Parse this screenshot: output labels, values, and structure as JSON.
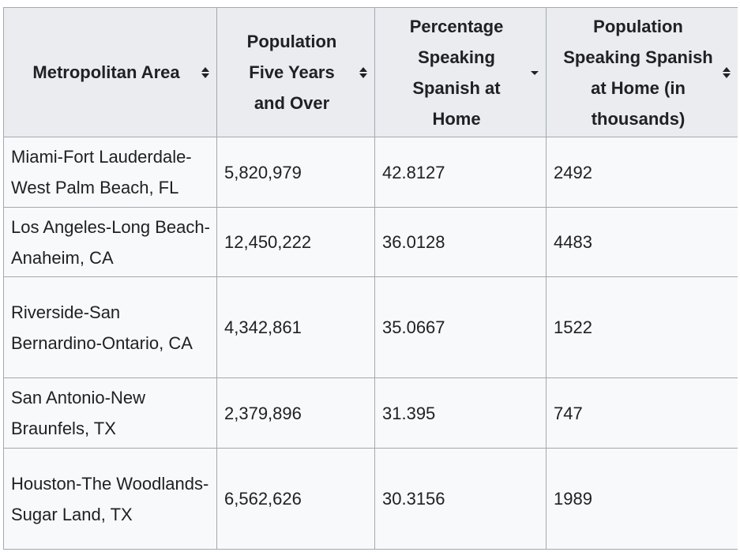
{
  "table": {
    "headers": [
      {
        "label": "Metropolitan Area",
        "sort": "both"
      },
      {
        "label": "Population Five Years and Over",
        "sort": "both"
      },
      {
        "label": "Percentage Speaking Spanish at Home",
        "sort": "descending"
      },
      {
        "label": "Population Speaking Spanish at Home (in thousands)",
        "sort": "both"
      }
    ],
    "rows": [
      {
        "metro": "Miami-Fort Lauderdale-West Palm Beach, FL",
        "population": "5,820,979",
        "percentage": "42.8127",
        "spanish_thousands": "2492"
      },
      {
        "metro": "Los Angeles-Long Beach-Anaheim, CA",
        "population": "12,450,222",
        "percentage": "36.0128",
        "spanish_thousands": "4483"
      },
      {
        "metro": "Riverside-San Bernardino-Ontario, CA",
        "population": "4,342,861",
        "percentage": "35.0667",
        "spanish_thousands": "1522"
      },
      {
        "metro": "San Antonio-New Braunfels, TX",
        "population": "2,379,896",
        "percentage": "31.395",
        "spanish_thousands": "747"
      },
      {
        "metro": "Houston-The Woodlands-Sugar Land, TX",
        "population": "6,562,626",
        "percentage": "30.3156",
        "spanish_thousands": "1989"
      }
    ]
  },
  "icons": {
    "sort_both": "sort-both-icon",
    "sort_descending": "sort-descending-icon"
  },
  "colors": {
    "header_bg": "#eaecf0",
    "cell_bg": "#f8f9fa",
    "border": "#a2a9b1",
    "text": "#202122"
  }
}
